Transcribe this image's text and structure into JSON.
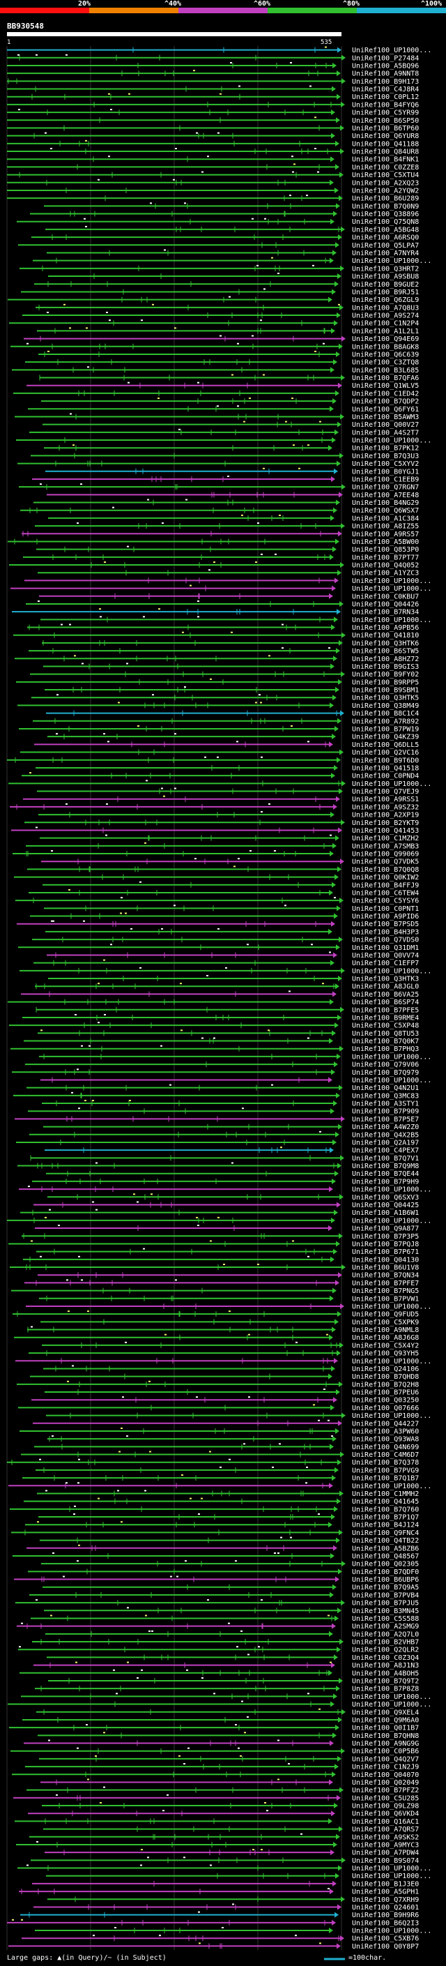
{
  "colors": {
    "red": "#ff1010",
    "orange": "#f08000",
    "magenta": "#c040c0",
    "green": "#30c030",
    "cyan": "#20b0d0",
    "background": "#000000",
    "insert_white": "#ffffff",
    "insert_yellow": "#f0f070"
  },
  "legend": {
    "labels": [
      "20%",
      "^40%",
      "^60%",
      "^80%",
      "^100%"
    ]
  },
  "query": {
    "id": "BB930548",
    "start": "1",
    "end": "535"
  },
  "footer": {
    "left_text": "Large gaps: ▲(in Query)/~ (in Subject)",
    "right_text": "=100char."
  },
  "hits": [
    {
      "label": "UniRef100_UP1000...",
      "color": "cyan"
    },
    {
      "label": "UniRef100_P27484",
      "color": "green"
    },
    {
      "label": "UniRef100_A5BQ96",
      "color": "green"
    },
    {
      "label": "UniRef100_A9NNT8",
      "color": "green"
    },
    {
      "label": "UniRef100_B9H173",
      "color": "green"
    },
    {
      "label": "UniRef100_C4J8R4",
      "color": "green"
    },
    {
      "label": "UniRef100_C0PL12",
      "color": "green"
    },
    {
      "label": "UniRef100_B4FYQ6",
      "color": "green"
    },
    {
      "label": "UniRef100_C5YR99",
      "color": "green"
    },
    {
      "label": "UniRef100_B6SP50",
      "color": "green"
    },
    {
      "label": "UniRef100_B6TP60",
      "color": "green"
    },
    {
      "label": "UniRef100_Q6YUR8",
      "color": "green"
    },
    {
      "label": "UniRef100_Q41188",
      "color": "green"
    },
    {
      "label": "UniRef100_Q84UR8",
      "color": "green"
    },
    {
      "label": "UniRef100_B4FNK1",
      "color": "green"
    },
    {
      "label": "UniRef100_C0ZZE8",
      "color": "green"
    },
    {
      "label": "UniRef100_C5XTU4",
      "color": "green"
    },
    {
      "label": "UniRef100_A2XQ23",
      "color": "green"
    },
    {
      "label": "UniRef100_A2YQW2",
      "color": "green"
    },
    {
      "label": "UniRef100_B6U289",
      "color": "green"
    },
    {
      "label": "UniRef100_B7Q0N9",
      "color": "green"
    },
    {
      "label": "UniRef100_Q38896",
      "color": "green"
    },
    {
      "label": "UniRef100_Q75QN8",
      "color": "green"
    },
    {
      "label": "UniRef100_A5BG48",
      "color": "green"
    },
    {
      "label": "UniRef100_A6RSQ0",
      "color": "green"
    },
    {
      "label": "UniRef100_Q5LPA7",
      "color": "green"
    },
    {
      "label": "UniRef100_A7NYR4",
      "color": "green"
    },
    {
      "label": "UniRef100_UP1000...",
      "color": "green"
    },
    {
      "label": "UniRef100_Q3HRT2",
      "color": "green"
    },
    {
      "label": "UniRef100_A9SBU8",
      "color": "green"
    },
    {
      "label": "UniRef100_B9GUE2",
      "color": "green"
    },
    {
      "label": "UniRef100_B9RJ51",
      "color": "green"
    },
    {
      "label": "UniRef100_Q6ZGL9",
      "color": "green"
    },
    {
      "label": "UniRef100_A7Q8U3",
      "color": "green"
    },
    {
      "label": "UniRef100_A9S274",
      "color": "green"
    },
    {
      "label": "UniRef100_C1N2P4",
      "color": "green"
    },
    {
      "label": "UniRef100_A1L2L1",
      "color": "green"
    },
    {
      "label": "UniRef100_Q94E69",
      "color": "magenta"
    },
    {
      "label": "UniRef100_B8AGK8",
      "color": "green"
    },
    {
      "label": "UniRef100_Q6C639",
      "color": "green"
    },
    {
      "label": "UniRef100_C3ZTQ8",
      "color": "green"
    },
    {
      "label": "UniRef100_B3L685",
      "color": "green"
    },
    {
      "label": "UniRef100_B7QFA6",
      "color": "green"
    },
    {
      "label": "UniRef100_Q1WLV5",
      "color": "magenta"
    },
    {
      "label": "UniRef100_C1ED42",
      "color": "green"
    },
    {
      "label": "UniRef100_B7QDP2",
      "color": "green"
    },
    {
      "label": "UniRef100_Q6FY61",
      "color": "green"
    },
    {
      "label": "UniRef100_B5AWM3",
      "color": "green"
    },
    {
      "label": "UniRef100_Q00V27",
      "color": "green"
    },
    {
      "label": "UniRef100_A4S2T7",
      "color": "green"
    },
    {
      "label": "UniRef100_UP1000...",
      "color": "green"
    },
    {
      "label": "UniRef100_B7PK12",
      "color": "green"
    },
    {
      "label": "UniRef100_B7Q3U3",
      "color": "green"
    },
    {
      "label": "UniRef100_C5XYV2",
      "color": "green"
    },
    {
      "label": "UniRef100_B0YGJ1",
      "color": "cyan"
    },
    {
      "label": "UniRef100_C1EEB9",
      "color": "magenta"
    },
    {
      "label": "UniRef100_Q7RGN7",
      "color": "green"
    },
    {
      "label": "UniRef100_A7EE48",
      "color": "magenta"
    },
    {
      "label": "UniRef100_B4NG29",
      "color": "green"
    },
    {
      "label": "UniRef100_Q6WSX7",
      "color": "green"
    },
    {
      "label": "UniRef100_A1C384",
      "color": "green"
    },
    {
      "label": "UniRef100_A8IZ55",
      "color": "green"
    },
    {
      "label": "UniRef100_A9RS57",
      "color": "magenta"
    },
    {
      "label": "UniRef100_A5BW00",
      "color": "green"
    },
    {
      "label": "UniRef100_Q853P0",
      "color": "green"
    },
    {
      "label": "UniRef100_B7PT77",
      "color": "green"
    },
    {
      "label": "UniRef100_Q4Q052",
      "color": "green"
    },
    {
      "label": "UniRef100_A1YZC3",
      "color": "green"
    },
    {
      "label": "UniRef100_UP1000...",
      "color": "magenta"
    },
    {
      "label": "UniRef100_UP1000...",
      "color": "magenta"
    },
    {
      "label": "UniRef100_C0KBU7",
      "color": "magenta"
    },
    {
      "label": "UniRef100_Q04426",
      "color": "green"
    },
    {
      "label": "UniRef100_B7RN34",
      "color": "cyan"
    },
    {
      "label": "UniRef100_UP1000...",
      "color": "green"
    },
    {
      "label": "UniRef100_A9PB56",
      "color": "green"
    },
    {
      "label": "UniRef100_Q41810",
      "color": "green"
    },
    {
      "label": "UniRef100_Q3HTK6",
      "color": "green"
    },
    {
      "label": "UniRef100_B6STW5",
      "color": "green"
    },
    {
      "label": "UniRef100_A8HZ72",
      "color": "green"
    },
    {
      "label": "UniRef100_B9GIS3",
      "color": "green"
    },
    {
      "label": "UniRef100_B9FY02",
      "color": "green"
    },
    {
      "label": "UniRef100_B9RPP5",
      "color": "green"
    },
    {
      "label": "UniRef100_B9SBM1",
      "color": "green"
    },
    {
      "label": "UniRef100_Q3HTK5",
      "color": "green"
    },
    {
      "label": "UniRef100_Q38M49",
      "color": "green"
    },
    {
      "label": "UniRef100_B8C1C4",
      "color": "cyan"
    },
    {
      "label": "UniRef100_A7R892",
      "color": "green"
    },
    {
      "label": "UniRef100_B7PW19",
      "color": "green"
    },
    {
      "label": "UniRef100_Q4KZ39",
      "color": "green"
    },
    {
      "label": "UniRef100_Q6DLL5",
      "color": "magenta"
    },
    {
      "label": "UniRef100_Q2VC16",
      "color": "green"
    },
    {
      "label": "UniRef100_B9T6D0",
      "color": "green"
    },
    {
      "label": "UniRef100_Q41518",
      "color": "green"
    },
    {
      "label": "UniRef100_C0PND4",
      "color": "green"
    },
    {
      "label": "UniRef100_UP1000...",
      "color": "green"
    },
    {
      "label": "UniRef100_Q7VEJ9",
      "color": "green"
    },
    {
      "label": "UniRef100_A9RSS1",
      "color": "magenta"
    },
    {
      "label": "UniRef100_A9SZ32",
      "color": "magenta"
    },
    {
      "label": "UniRef100_A2XP19",
      "color": "green"
    },
    {
      "label": "UniRef100_B2YKT9",
      "color": "green"
    },
    {
      "label": "UniRef100_Q41453",
      "color": "magenta"
    },
    {
      "label": "UniRef100_C1MZH2",
      "color": "green"
    },
    {
      "label": "UniRef100_A7SMB3",
      "color": "green"
    },
    {
      "label": "UniRef100_Q99069",
      "color": "green"
    },
    {
      "label": "UniRef100_Q7VDK5",
      "color": "magenta"
    },
    {
      "label": "UniRef100_B7Q0Q8",
      "color": "green"
    },
    {
      "label": "UniRef100_Q0KIW2",
      "color": "green"
    },
    {
      "label": "UniRef100_B4FFJ9",
      "color": "green"
    },
    {
      "label": "UniRef100_C6TEW4",
      "color": "green"
    },
    {
      "label": "UniRef100_C5YSY6",
      "color": "green"
    },
    {
      "label": "UniRef100_C0PNT1",
      "color": "green"
    },
    {
      "label": "UniRef100_A9PID6",
      "color": "green"
    },
    {
      "label": "UniRef100_B7PSD5",
      "color": "magenta"
    },
    {
      "label": "UniRef100_B4H3P3",
      "color": "green"
    },
    {
      "label": "UniRef100_Q7VDS0",
      "color": "green"
    },
    {
      "label": "UniRef100_Q31DM1",
      "color": "green"
    },
    {
      "label": "UniRef100_Q0VV74",
      "color": "magenta"
    },
    {
      "label": "UniRef100_C1EFP7",
      "color": "green"
    },
    {
      "label": "UniRef100_UP1000...",
      "color": "green"
    },
    {
      "label": "UniRef100_Q3HTK3",
      "color": "green"
    },
    {
      "label": "UniRef100_A8JGL0",
      "color": "green"
    },
    {
      "label": "UniRef100_B6VA25",
      "color": "magenta"
    },
    {
      "label": "UniRef100_B6SP74",
      "color": "green"
    },
    {
      "label": "UniRef100_B7PFE5",
      "color": "green"
    },
    {
      "label": "UniRef100_B9RME4",
      "color": "green"
    },
    {
      "label": "UniRef100_C5XP48",
      "color": "green"
    },
    {
      "label": "UniRef100_Q8TU53",
      "color": "green"
    },
    {
      "label": "UniRef100_B7Q0K7",
      "color": "green"
    },
    {
      "label": "UniRef100_B7PHQ3",
      "color": "green"
    },
    {
      "label": "UniRef100_UP1000...",
      "color": "green"
    },
    {
      "label": "UniRef100_Q79V06",
      "color": "green"
    },
    {
      "label": "UniRef100_B7Q979",
      "color": "green"
    },
    {
      "label": "UniRef100_UP1000...",
      "color": "magenta"
    },
    {
      "label": "UniRef100_Q4N2U1",
      "color": "green"
    },
    {
      "label": "UniRef100_Q3MC83",
      "color": "green"
    },
    {
      "label": "UniRef100_A3STY1",
      "color": "green"
    },
    {
      "label": "UniRef100_B7P909",
      "color": "green"
    },
    {
      "label": "UniRef100_B7P5E7",
      "color": "magenta"
    },
    {
      "label": "UniRef100_A4W2Z0",
      "color": "green"
    },
    {
      "label": "UniRef100_Q4X2B5",
      "color": "green"
    },
    {
      "label": "UniRef100_Q2A197",
      "color": "green"
    },
    {
      "label": "UniRef100_C4PEX7",
      "color": "cyan"
    },
    {
      "label": "UniRef100_B7Q7V1",
      "color": "green"
    },
    {
      "label": "UniRef100_B7Q9M8",
      "color": "green"
    },
    {
      "label": "UniRef100_B7QE44",
      "color": "green"
    },
    {
      "label": "UniRef100_B7P9H9",
      "color": "green"
    },
    {
      "label": "UniRef100_UP1000...",
      "color": "magenta"
    },
    {
      "label": "UniRef100_Q6SXV3",
      "color": "green"
    },
    {
      "label": "UniRef100_Q04425",
      "color": "magenta"
    },
    {
      "label": "UniRef100_A1B6W1",
      "color": "green"
    },
    {
      "label": "UniRef100_UP1000...",
      "color": "green"
    },
    {
      "label": "UniRef100_Q9A877",
      "color": "magenta"
    },
    {
      "label": "UniRef100_B7P3P5",
      "color": "green"
    },
    {
      "label": "UniRef100_B7PQJ8",
      "color": "green"
    },
    {
      "label": "UniRef100_B7P671",
      "color": "green"
    },
    {
      "label": "UniRef100_Q04130",
      "color": "green"
    },
    {
      "label": "UniRef100_B6U1V8",
      "color": "green"
    },
    {
      "label": "UniRef100_B7QN34",
      "color": "magenta"
    },
    {
      "label": "UniRef100_B7PFE7",
      "color": "magenta"
    },
    {
      "label": "UniRef100_B7PNG5",
      "color": "green"
    },
    {
      "label": "UniRef100_B7PVW1",
      "color": "green"
    },
    {
      "label": "UniRef100_UP1000...",
      "color": "magenta"
    },
    {
      "label": "UniRef100_Q9FUD5",
      "color": "green"
    },
    {
      "label": "UniRef100_C5XPK9",
      "color": "green"
    },
    {
      "label": "UniRef100_A9NML8",
      "color": "green"
    },
    {
      "label": "UniRef100_A8J6G8",
      "color": "green"
    },
    {
      "label": "UniRef100_C5X4Y2",
      "color": "green"
    },
    {
      "label": "UniRef100_Q93YH5",
      "color": "green"
    },
    {
      "label": "UniRef100_UP1000...",
      "color": "magenta"
    },
    {
      "label": "UniRef100_Q24106",
      "color": "green"
    },
    {
      "label": "UniRef100_B7QHD8",
      "color": "green"
    },
    {
      "label": "UniRef100_B7Q2H8",
      "color": "green"
    },
    {
      "label": "UniRef100_B7PEU6",
      "color": "green"
    },
    {
      "label": "UniRef100_Q03250",
      "color": "magenta"
    },
    {
      "label": "UniRef100_Q07666",
      "color": "green"
    },
    {
      "label": "UniRef100_UP1000...",
      "color": "green"
    },
    {
      "label": "UniRef100_Q44227",
      "color": "magenta"
    },
    {
      "label": "UniRef100_A3PW60",
      "color": "green"
    },
    {
      "label": "UniRef100_Q93WA8",
      "color": "green"
    },
    {
      "label": "UniRef100_Q4N699",
      "color": "green"
    },
    {
      "label": "UniRef100_C4M6D7",
      "color": "green"
    },
    {
      "label": "UniRef100_B7Q378",
      "color": "green"
    },
    {
      "label": "UniRef100_B7PVG9",
      "color": "green"
    },
    {
      "label": "UniRef100_B7Q1B7",
      "color": "green"
    },
    {
      "label": "UniRef100_UP1000...",
      "color": "magenta"
    },
    {
      "label": "UniRef100_C1MMH2",
      "color": "green"
    },
    {
      "label": "UniRef100_Q41645",
      "color": "green"
    },
    {
      "label": "UniRef100_B7Q760",
      "color": "green"
    },
    {
      "label": "UniRef100_B7P1Q7",
      "color": "green"
    },
    {
      "label": "UniRef100_B4J124",
      "color": "green"
    },
    {
      "label": "UniRef100_Q9FNC4",
      "color": "green"
    },
    {
      "label": "UniRef100_Q4TB22",
      "color": "green"
    },
    {
      "label": "UniRef100_A5BZB6",
      "color": "magenta"
    },
    {
      "label": "UniRef100_Q48567",
      "color": "green"
    },
    {
      "label": "UniRef100_Q02305",
      "color": "green"
    },
    {
      "label": "UniRef100_B7QDF0",
      "color": "green"
    },
    {
      "label": "UniRef100_B6UBP6",
      "color": "magenta"
    },
    {
      "label": "UniRef100_B7Q9A5",
      "color": "green"
    },
    {
      "label": "UniRef100_B7PVB4",
      "color": "green"
    },
    {
      "label": "UniRef100_B7PJU5",
      "color": "green"
    },
    {
      "label": "UniRef100_B3MN45",
      "color": "green"
    },
    {
      "label": "UniRef100_C5S588",
      "color": "green"
    },
    {
      "label": "UniRef100_A2SMG9",
      "color": "magenta"
    },
    {
      "label": "UniRef100_A2Q7L0",
      "color": "green"
    },
    {
      "label": "UniRef100_B2VHB7",
      "color": "green"
    },
    {
      "label": "UniRef100_Q2QLR2",
      "color": "green"
    },
    {
      "label": "UniRef100_C0Z3Q4",
      "color": "green"
    },
    {
      "label": "UniRef100_A8J1N3",
      "color": "magenta"
    },
    {
      "label": "UniRef100_A4BOH5",
      "color": "green"
    },
    {
      "label": "UniRef100_B7Q9T2",
      "color": "green"
    },
    {
      "label": "UniRef100_B7P8Z8",
      "color": "green"
    },
    {
      "label": "UniRef100_UP1000...",
      "color": "green"
    },
    {
      "label": "UniRef100_UP1000...",
      "color": "green"
    },
    {
      "label": "UniRef100_Q9XEL4",
      "color": "green"
    },
    {
      "label": "UniRef100_Q9M6A0",
      "color": "green"
    },
    {
      "label": "UniRef100_Q0I1B7",
      "color": "green"
    },
    {
      "label": "UniRef100_B7QHN8",
      "color": "green"
    },
    {
      "label": "UniRef100_A9NG9G",
      "color": "magenta"
    },
    {
      "label": "UniRef100_C0P5B6",
      "color": "green"
    },
    {
      "label": "UniRef100_Q4Q2V7",
      "color": "green"
    },
    {
      "label": "UniRef100_C1N2J9",
      "color": "green"
    },
    {
      "label": "UniRef100_Q04070",
      "color": "green"
    },
    {
      "label": "UniRef100_Q02049",
      "color": "magenta"
    },
    {
      "label": "UniRef100_B7PFZ2",
      "color": "green"
    },
    {
      "label": "UniRef100_C5U285",
      "color": "magenta"
    },
    {
      "label": "UniRef100_Q9LZ98",
      "color": "green"
    },
    {
      "label": "UniRef100_Q6VKD4",
      "color": "magenta"
    },
    {
      "label": "UniRef100_Q16AC1",
      "color": "green"
    },
    {
      "label": "UniRef100_A7QRS7",
      "color": "green"
    },
    {
      "label": "UniRef100_A9SKS2",
      "color": "green"
    },
    {
      "label": "UniRef100_A9MYC3",
      "color": "green"
    },
    {
      "label": "UniRef100_A7PDW4",
      "color": "magenta"
    },
    {
      "label": "UniRef100_B9S074",
      "color": "green"
    },
    {
      "label": "UniRef100_UP1000...",
      "color": "green"
    },
    {
      "label": "UniRef100_UP1000...",
      "color": "green"
    },
    {
      "label": "UniRef100_B1J3E0",
      "color": "magenta"
    },
    {
      "label": "UniRef100_A5GPH1",
      "color": "magenta"
    },
    {
      "label": "UniRef100_Q7XRH9",
      "color": "green"
    },
    {
      "label": "UniRef100_Q24601",
      "color": "magenta"
    },
    {
      "label": "UniRef100_B9H9R6",
      "color": "cyan"
    },
    {
      "label": "UniRef100_B6Q2I3",
      "color": "magenta"
    },
    {
      "label": "UniRef100_UP1000...",
      "color": "green"
    },
    {
      "label": "UniRef100_C5XB76",
      "color": "magenta"
    },
    {
      "label": "UniRef100_Q0Y8P7",
      "color": "magenta"
    }
  ]
}
